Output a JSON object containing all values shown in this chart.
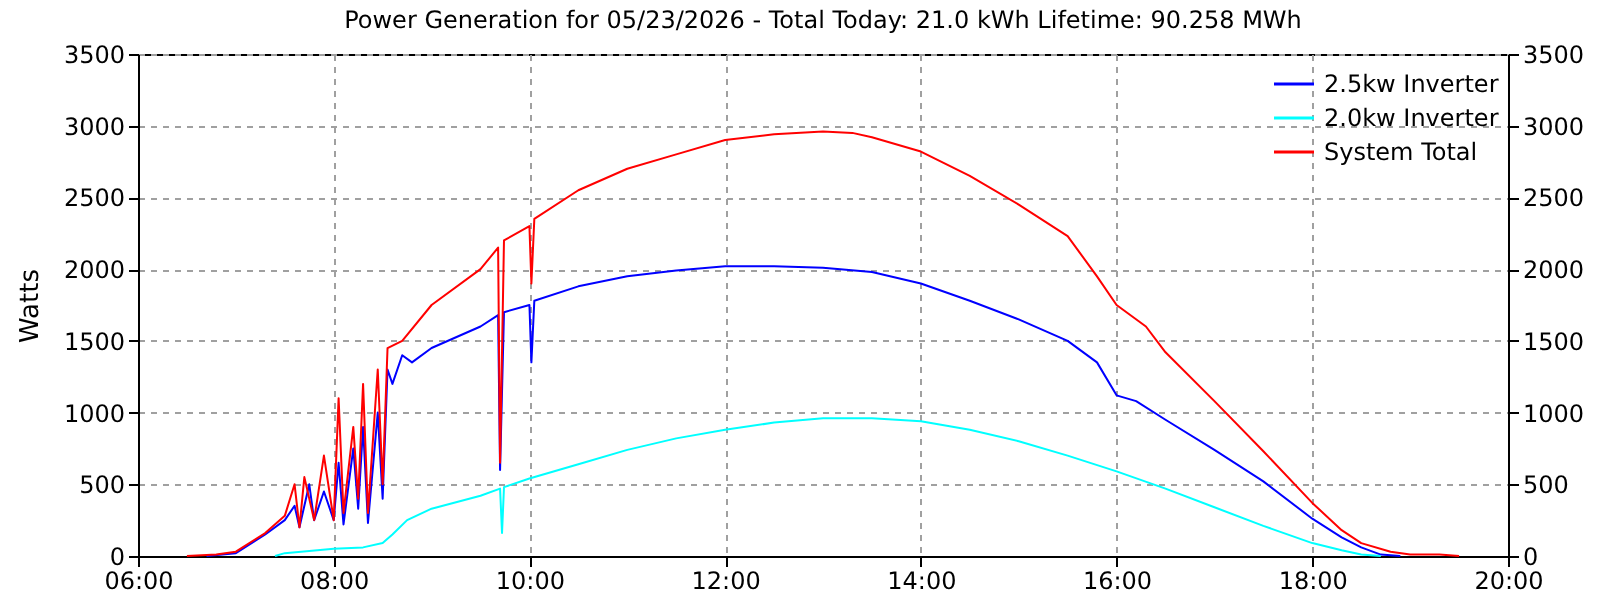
{
  "chart_data": {
    "type": "line",
    "title": "Power Generation for 05/23/2026 - Total Today: 21.0 kWh   Lifetime: 90.258 MWh",
    "ylabel": "Watts",
    "xlim": [
      6,
      20
    ],
    "xticks": [
      {
        "value": 6,
        "label": "06:00"
      },
      {
        "value": 8,
        "label": "08:00"
      },
      {
        "value": 10,
        "label": "10:00"
      },
      {
        "value": 12,
        "label": "12:00"
      },
      {
        "value": 14,
        "label": "14:00"
      },
      {
        "value": 16,
        "label": "16:00"
      },
      {
        "value": 18,
        "label": "18:00"
      },
      {
        "value": 20,
        "label": "20:00"
      }
    ],
    "ylim": [
      0,
      3500
    ],
    "yticks": [
      0,
      500,
      1000,
      1500,
      2000,
      2500,
      3000,
      3500
    ],
    "y2lim": [
      0,
      3500
    ],
    "y2ticks": [
      0,
      500,
      1000,
      1500,
      2000,
      2500,
      3000,
      3500
    ],
    "grid": true,
    "legend": "top right",
    "marker": "none",
    "line_style": "solid",
    "series": [
      {
        "name": "2.5kw Inverter",
        "color": "#0000ff",
        "x": [
          6.7,
          7.0,
          7.3,
          7.5,
          7.6,
          7.65,
          7.75,
          7.8,
          7.9,
          8.0,
          8.05,
          8.1,
          8.2,
          8.25,
          8.3,
          8.35,
          8.45,
          8.5,
          8.55,
          8.6,
          8.7,
          8.8,
          9.0,
          9.5,
          9.68,
          9.7,
          9.74,
          10.0,
          10.02,
          10.05,
          10.5,
          11,
          11.5,
          12,
          12.5,
          13,
          13.5,
          14,
          14.5,
          15,
          15.5,
          15.8,
          16,
          16.2,
          16.5,
          17,
          17.5,
          18,
          18.3,
          18.5,
          18.7,
          18.9
        ],
        "values": [
          0,
          20,
          150,
          250,
          350,
          200,
          500,
          250,
          450,
          250,
          650,
          220,
          750,
          330,
          900,
          230,
          1000,
          400,
          1300,
          1200,
          1400,
          1350,
          1450,
          1600,
          1680,
          600,
          1700,
          1750,
          1350,
          1780,
          1880,
          1950,
          1990,
          2020,
          2020,
          2010,
          1980,
          1900,
          1780,
          1650,
          1500,
          1350,
          1120,
          1080,
          950,
          740,
          520,
          260,
          130,
          60,
          10,
          0
        ]
      },
      {
        "name": "2.0kw Inverter",
        "color": "#00ffff",
        "x": [
          7.4,
          7.5,
          8.0,
          8.3,
          8.5,
          8.6,
          8.75,
          9.0,
          9.5,
          9.7,
          9.72,
          9.74,
          10.0,
          10.5,
          11,
          11.5,
          12,
          12.5,
          13,
          13.5,
          14,
          14.5,
          15,
          15.5,
          16,
          16.5,
          17,
          17.5,
          18,
          18.3,
          18.5,
          18.7
        ],
        "values": [
          0,
          20,
          50,
          60,
          90,
          150,
          250,
          330,
          420,
          470,
          160,
          480,
          540,
          640,
          740,
          820,
          880,
          930,
          960,
          960,
          940,
          880,
          800,
          700,
          590,
          470,
          340,
          210,
          90,
          40,
          10,
          0
        ]
      },
      {
        "name": "System Total",
        "color": "#ff0000",
        "x": [
          6.5,
          6.8,
          7.0,
          7.3,
          7.5,
          7.6,
          7.65,
          7.7,
          7.8,
          7.9,
          8.0,
          8.05,
          8.1,
          8.2,
          8.25,
          8.3,
          8.35,
          8.45,
          8.5,
          8.55,
          8.7,
          9.0,
          9.5,
          9.68,
          9.7,
          9.74,
          10.0,
          10.02,
          10.05,
          10.5,
          11,
          11.5,
          12,
          12.5,
          13,
          13.3,
          13.5,
          14,
          14.5,
          15,
          15.5,
          15.8,
          16,
          16.3,
          16.5,
          17,
          17.5,
          18,
          18.3,
          18.5,
          18.8,
          19.0,
          19.3,
          19.5
        ],
        "values": [
          0,
          10,
          30,
          160,
          280,
          500,
          200,
          550,
          250,
          700,
          250,
          1100,
          300,
          900,
          400,
          1200,
          300,
          1300,
          500,
          1450,
          1500,
          1750,
          2000,
          2150,
          650,
          2200,
          2300,
          1900,
          2350,
          2550,
          2700,
          2800,
          2900,
          2940,
          2960,
          2950,
          2920,
          2820,
          2650,
          2450,
          2230,
          1950,
          1750,
          1600,
          1420,
          1080,
          730,
          370,
          180,
          90,
          30,
          10,
          10,
          0
        ]
      }
    ]
  }
}
